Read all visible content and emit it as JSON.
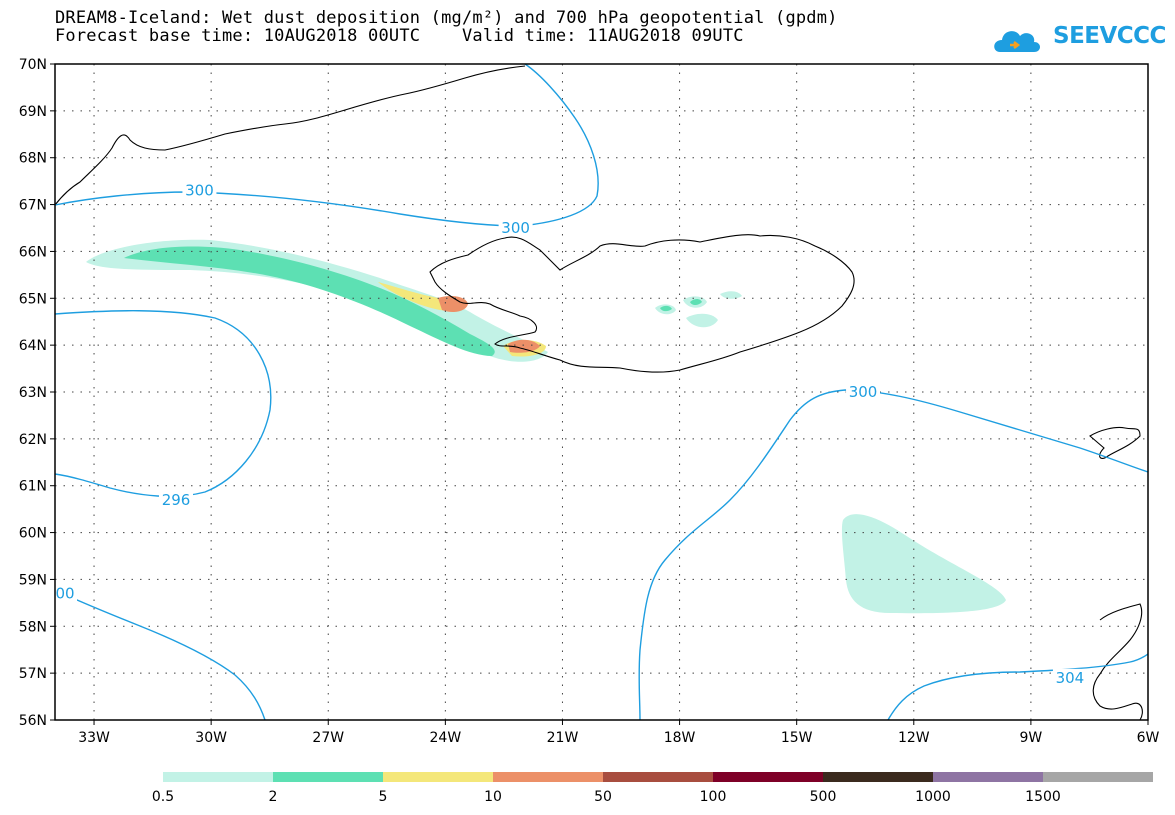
{
  "header": {
    "title_line1": "DREAM8-Iceland: Wet dust deposition (mg/m²) and 700 hPa geopotential (gpdm)",
    "title_line2": "Forecast base time: 10AUG2018 00UTC    Valid time: 11AUG2018 09UTC",
    "logo_text": "SEEVCCC",
    "logo_color": "#1e9ee0"
  },
  "chart_data": {
    "type": "heatmap",
    "map_extent": {
      "lon": [
        -34,
        -6
      ],
      "lat": [
        56,
        70
      ]
    },
    "lon_ticks": [
      {
        "value": -33,
        "label": "33W"
      },
      {
        "value": -30,
        "label": "30W"
      },
      {
        "value": -27,
        "label": "27W"
      },
      {
        "value": -24,
        "label": "24W"
      },
      {
        "value": -21,
        "label": "21W"
      },
      {
        "value": -18,
        "label": "18W"
      },
      {
        "value": -15,
        "label": "15W"
      },
      {
        "value": -12,
        "label": "12W"
      },
      {
        "value": -9,
        "label": "9W"
      },
      {
        "value": -6,
        "label": "6W"
      }
    ],
    "lat_ticks": [
      {
        "value": 70,
        "label": "70N"
      },
      {
        "value": 69,
        "label": "69N"
      },
      {
        "value": 68,
        "label": "68N"
      },
      {
        "value": 67,
        "label": "67N"
      },
      {
        "value": 66,
        "label": "66N"
      },
      {
        "value": 65,
        "label": "65N"
      },
      {
        "value": 64,
        "label": "64N"
      },
      {
        "value": 63,
        "label": "63N"
      },
      {
        "value": 62,
        "label": "62N"
      },
      {
        "value": 61,
        "label": "61N"
      },
      {
        "value": 60,
        "label": "60N"
      },
      {
        "value": 59,
        "label": "59N"
      },
      {
        "value": 58,
        "label": "58N"
      },
      {
        "value": 57,
        "label": "57N"
      },
      {
        "value": 56,
        "label": "56N"
      }
    ],
    "grid": "dotted",
    "contour_color": "#1e9ee0",
    "contour_labels": [
      {
        "text": "300",
        "lon": -30.3,
        "lat": 67.3
      },
      {
        "text": "300",
        "lon": -22.2,
        "lat": 66.5
      },
      {
        "text": "300",
        "lon": -13.3,
        "lat": 63.0
      },
      {
        "text": "296",
        "lon": -30.9,
        "lat": 60.7
      },
      {
        "text": "00",
        "lon": -34.0,
        "lat": 58.7
      },
      {
        "text": "304",
        "lon": -8.0,
        "lat": 56.9
      }
    ],
    "legend": {
      "colors": [
        "#c2f2e6",
        "#5de0b3",
        "#f4e77a",
        "#ec9068",
        "#a84d3f",
        "#7e0027",
        "#3b2a1e",
        "#8e74a3",
        "#a6a6a6"
      ],
      "labels": [
        "0.5",
        "2",
        "5",
        "10",
        "50",
        "100",
        "500",
        "1000",
        "1500"
      ]
    }
  }
}
